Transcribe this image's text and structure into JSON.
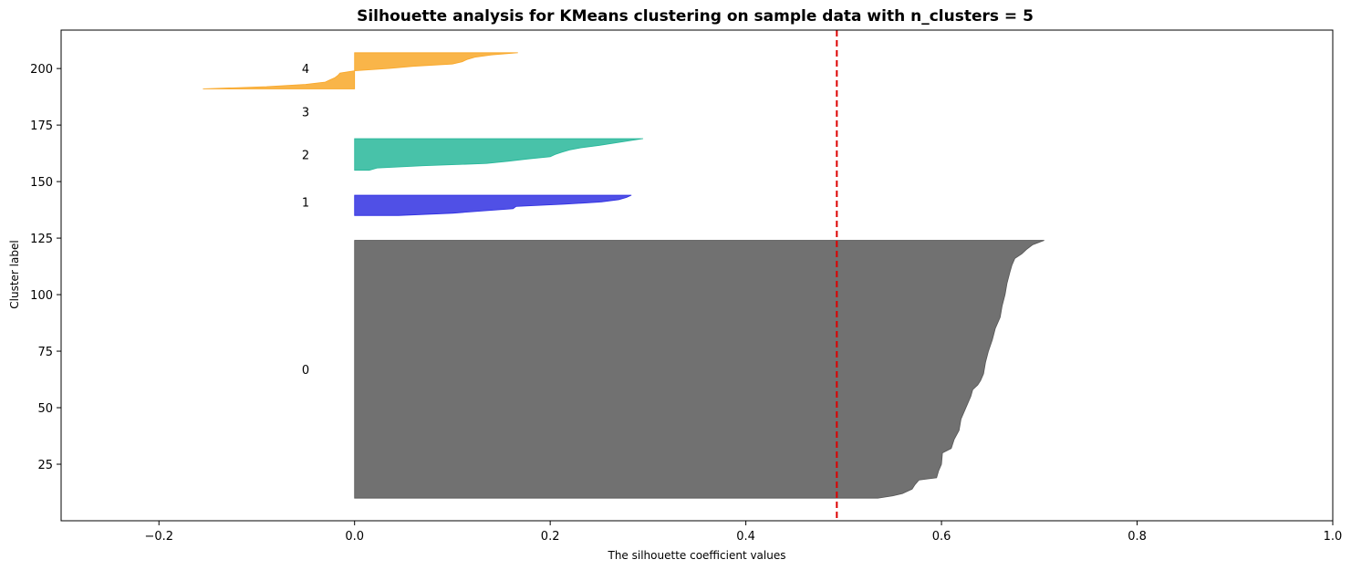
{
  "chart_data": {
    "type": "area",
    "title": "Silhouette analysis for KMeans clustering on sample data with n_clusters = 5",
    "xlabel": "The silhouette coefficient values",
    "ylabel": "Cluster label",
    "xlim": [
      -0.3,
      1.0
    ],
    "ylim": [
      0,
      217
    ],
    "x_ticks": [
      -0.2,
      0.0,
      0.2,
      0.4,
      0.6,
      0.8,
      1.0
    ],
    "x_tick_labels": [
      "−0.2",
      "0.0",
      "0.2",
      "0.4",
      "0.6",
      "0.8",
      "1.0"
    ],
    "y_ticks": [
      25,
      50,
      75,
      100,
      125,
      150,
      175,
      200
    ],
    "y_tick_labels": [
      "25",
      "50",
      "75",
      "100",
      "125",
      "150",
      "175",
      "200"
    ],
    "grid": false,
    "average_silhouette_score": 0.493,
    "average_line_color": "#dd0000",
    "clusters": [
      {
        "label": "0",
        "color": "#4d4d4d",
        "y_lower": 10,
        "y_upper": 124,
        "label_y": 67,
        "profile": [
          [
            10,
            0.535
          ],
          [
            11,
            0.55
          ],
          [
            12,
            0.56
          ],
          [
            14,
            0.57
          ],
          [
            16,
            0.573
          ],
          [
            18,
            0.577
          ],
          [
            19,
            0.595
          ],
          [
            22,
            0.597
          ],
          [
            25,
            0.6
          ],
          [
            30,
            0.601
          ],
          [
            32,
            0.61
          ],
          [
            36,
            0.613
          ],
          [
            40,
            0.618
          ],
          [
            45,
            0.62
          ],
          [
            50,
            0.625
          ],
          [
            55,
            0.63
          ],
          [
            58,
            0.632
          ],
          [
            60,
            0.637
          ],
          [
            62,
            0.64
          ],
          [
            65,
            0.643
          ],
          [
            70,
            0.645
          ],
          [
            75,
            0.648
          ],
          [
            80,
            0.652
          ],
          [
            85,
            0.655
          ],
          [
            90,
            0.66
          ],
          [
            95,
            0.662
          ],
          [
            100,
            0.665
          ],
          [
            105,
            0.667
          ],
          [
            110,
            0.67
          ],
          [
            113,
            0.672
          ],
          [
            116,
            0.675
          ],
          [
            118,
            0.682
          ],
          [
            120,
            0.687
          ],
          [
            122,
            0.693
          ],
          [
            124,
            0.705
          ]
        ]
      },
      {
        "label": "1",
        "color": "#2424e0",
        "y_lower": 135,
        "y_upper": 144,
        "label_y": 141,
        "profile": [
          [
            135,
            0.045
          ],
          [
            136,
            0.1
          ],
          [
            137,
            0.13
          ],
          [
            138,
            0.162
          ],
          [
            139,
            0.165
          ],
          [
            140,
            0.215
          ],
          [
            141,
            0.252
          ],
          [
            142,
            0.27
          ],
          [
            143,
            0.278
          ],
          [
            144,
            0.283
          ]
        ]
      },
      {
        "label": "2",
        "color": "#1ab394",
        "y_lower": 155,
        "y_upper": 169,
        "label_y": 162,
        "profile": [
          [
            155,
            0.015
          ],
          [
            156,
            0.023
          ],
          [
            157,
            0.07
          ],
          [
            158,
            0.135
          ],
          [
            159,
            0.157
          ],
          [
            160,
            0.177
          ],
          [
            161,
            0.2
          ],
          [
            162,
            0.205
          ],
          [
            163,
            0.212
          ],
          [
            164,
            0.22
          ],
          [
            165,
            0.232
          ],
          [
            166,
            0.25
          ],
          [
            167,
            0.265
          ],
          [
            168,
            0.28
          ],
          [
            169,
            0.295
          ]
        ]
      },
      {
        "label": "3",
        "color": "#cccc00",
        "y_lower": 180,
        "y_upper": 180,
        "label_y": 181,
        "profile": []
      },
      {
        "label": "4",
        "color": "#f8a21c",
        "y_lower": 191,
        "y_upper": 207,
        "label_y": 200,
        "profile": [
          [
            191,
            -0.155
          ],
          [
            192,
            -0.09
          ],
          [
            193,
            -0.05
          ],
          [
            194,
            -0.03
          ],
          [
            195,
            -0.025
          ],
          [
            196,
            -0.02
          ],
          [
            197,
            -0.017
          ],
          [
            198,
            -0.015
          ],
          [
            199,
            0.0
          ],
          [
            200,
            0.035
          ],
          [
            201,
            0.06
          ],
          [
            202,
            0.1
          ],
          [
            203,
            0.11
          ],
          [
            204,
            0.115
          ],
          [
            205,
            0.123
          ],
          [
            206,
            0.14
          ],
          [
            207,
            0.167
          ]
        ]
      }
    ]
  }
}
